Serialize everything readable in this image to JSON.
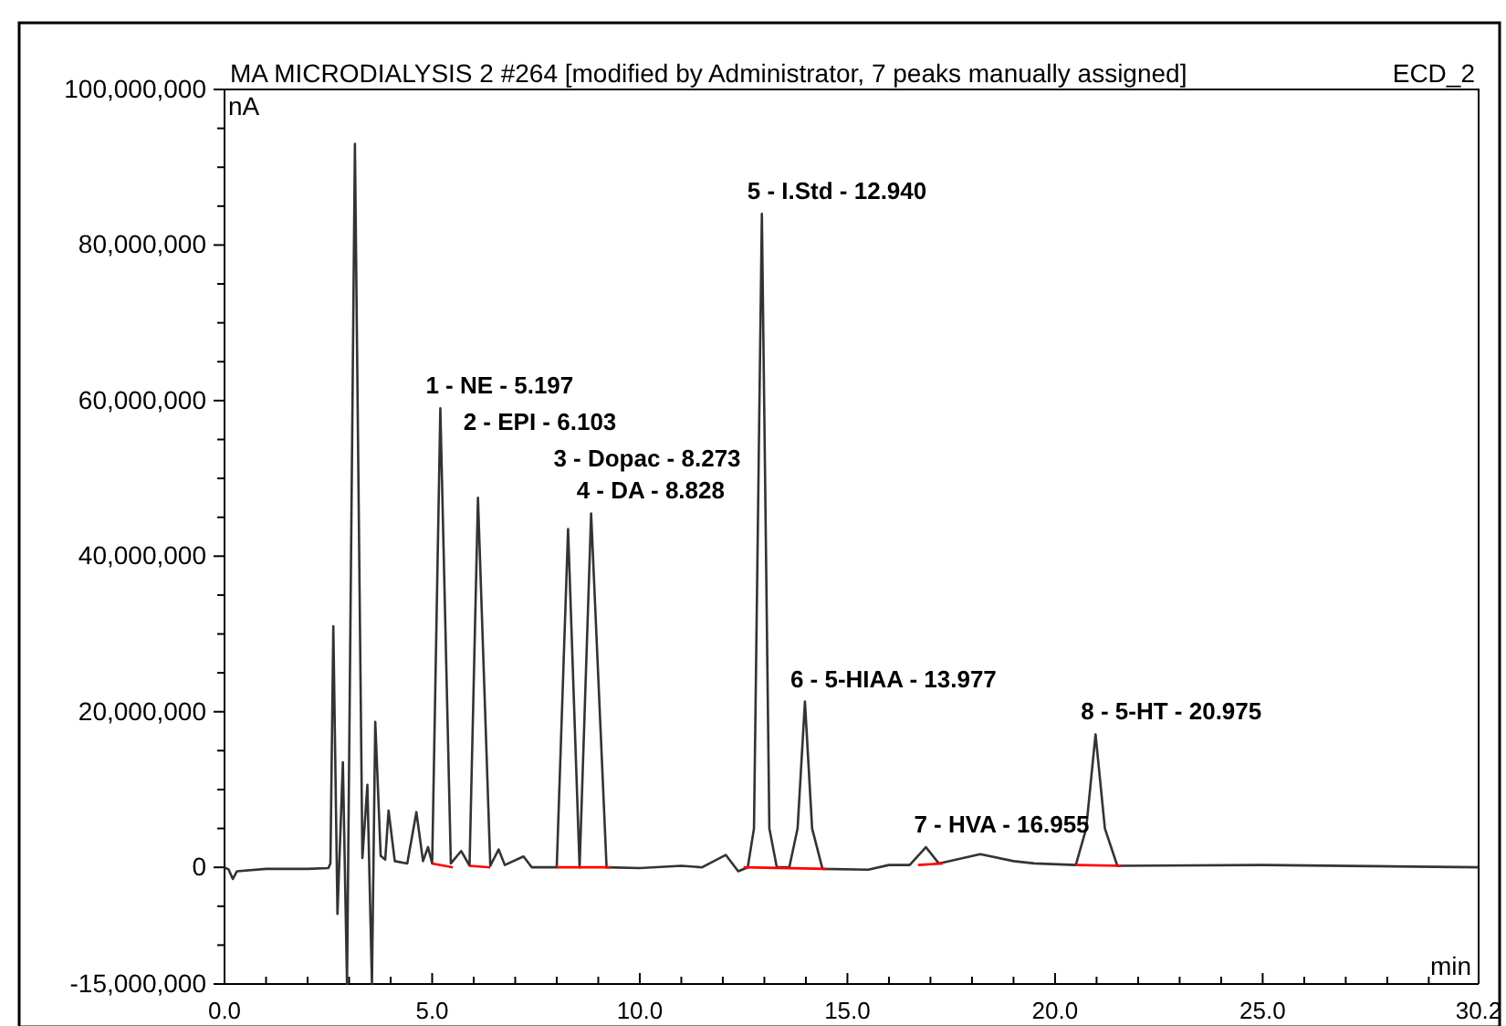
{
  "chart_data": {
    "type": "line",
    "title": "MA MICRODIALYSIS 2 #264 [modified by Administrator, 7 peaks manually assigned]",
    "subtitle": "ECD_2",
    "xlabel": "min",
    "ylabel": "nA",
    "xlim": [
      0,
      30.2
    ],
    "ylim": [
      -15000000,
      100000000
    ],
    "xticks": [
      {
        "value": 0,
        "label": "0.0"
      },
      {
        "value": 1,
        "label": null
      },
      {
        "value": 2,
        "label": null
      },
      {
        "value": 3,
        "label": null
      },
      {
        "value": 4,
        "label": null
      },
      {
        "value": 5,
        "label": "5.0"
      },
      {
        "value": 6,
        "label": null
      },
      {
        "value": 7,
        "label": null
      },
      {
        "value": 8,
        "label": null
      },
      {
        "value": 9,
        "label": null
      },
      {
        "value": 10,
        "label": "10.0"
      },
      {
        "value": 11,
        "label": null
      },
      {
        "value": 12,
        "label": null
      },
      {
        "value": 13,
        "label": null
      },
      {
        "value": 14,
        "label": null
      },
      {
        "value": 15,
        "label": "15.0"
      },
      {
        "value": 16,
        "label": null
      },
      {
        "value": 17,
        "label": null
      },
      {
        "value": 18,
        "label": null
      },
      {
        "value": 19,
        "label": null
      },
      {
        "value": 20,
        "label": "20.0"
      },
      {
        "value": 21,
        "label": null
      },
      {
        "value": 22,
        "label": null
      },
      {
        "value": 23,
        "label": null
      },
      {
        "value": 24,
        "label": null
      },
      {
        "value": 25,
        "label": "25.0"
      },
      {
        "value": 26,
        "label": null
      },
      {
        "value": 27,
        "label": null
      },
      {
        "value": 28,
        "label": null
      },
      {
        "value": 29,
        "label": null
      },
      {
        "value": 30.2,
        "label": "30.2"
      }
    ],
    "yticks": [
      {
        "value": -15000000,
        "label": "-15,000,000"
      },
      {
        "value": -10000000,
        "label": null
      },
      {
        "value": -5000000,
        "label": null
      },
      {
        "value": 0,
        "label": "0"
      },
      {
        "value": 5000000,
        "label": null
      },
      {
        "value": 10000000,
        "label": null
      },
      {
        "value": 15000000,
        "label": null
      },
      {
        "value": 20000000,
        "label": "20,000,000"
      },
      {
        "value": 25000000,
        "label": null
      },
      {
        "value": 30000000,
        "label": null
      },
      {
        "value": 35000000,
        "label": null
      },
      {
        "value": 40000000,
        "label": "40,000,000"
      },
      {
        "value": 45000000,
        "label": null
      },
      {
        "value": 50000000,
        "label": null
      },
      {
        "value": 55000000,
        "label": null
      },
      {
        "value": 60000000,
        "label": "60,000,000"
      },
      {
        "value": 65000000,
        "label": null
      },
      {
        "value": 70000000,
        "label": null
      },
      {
        "value": 75000000,
        "label": null
      },
      {
        "value": 80000000,
        "label": "80,000,000"
      },
      {
        "value": 85000000,
        "label": null
      },
      {
        "value": 90000000,
        "label": null
      },
      {
        "value": 95000000,
        "label": null
      },
      {
        "value": 100000000,
        "label": "100,000,000"
      }
    ],
    "grid": false,
    "series": [
      {
        "color": "#333333",
        "x": [
          0,
          0.1,
          0.2,
          0.3,
          1,
          2,
          2.5,
          2.55,
          2.62,
          2.72,
          2.85,
          2.95,
          3.14,
          3.32,
          3.44,
          3.55,
          3.63,
          3.76,
          3.87,
          3.95,
          4.1,
          4.4,
          4.62,
          4.78,
          4.9,
          5,
          5.197,
          5.45,
          5.7,
          5.9,
          6.103,
          6.4,
          6.6,
          6.75,
          7.2,
          7.4,
          8,
          8.273,
          8.55,
          8.828,
          9.2,
          10,
          11,
          11.5,
          12.07,
          12.37,
          12.6,
          12.75,
          12.94,
          13.12,
          13.3,
          13.6,
          13.8,
          13.977,
          14.15,
          14.4,
          15.5,
          16,
          16.5,
          16.89,
          17.2,
          18.2,
          19,
          19.5,
          20.5,
          20.75,
          20.975,
          21.2,
          21.5,
          25,
          30.2
        ],
        "values": [
          0,
          -300000,
          -1500000,
          -500000,
          -200000,
          -200000,
          -100000,
          500000,
          31000000,
          -6000000,
          13500000,
          -15000000,
          93000000,
          1200000,
          10600000,
          -15000000,
          18700000,
          1500000,
          1000000,
          7300000,
          800000,
          500000,
          7100000,
          800000,
          2600000,
          500000,
          59000000,
          500000,
          2100000,
          200000,
          47500000,
          200000,
          2300000,
          300000,
          1400000,
          0,
          0,
          43500000,
          0,
          45500000,
          0,
          -100000,
          200000,
          0,
          1600000,
          -500000,
          0,
          5000000,
          84000000,
          5000000,
          0,
          0,
          5000000,
          21300000,
          5000000,
          -200000,
          -300000,
          300000,
          300000,
          2600000,
          500000,
          1700000,
          800000,
          500000,
          300000,
          5000000,
          17100000,
          5000000,
          200000,
          300000,
          0
        ]
      },
      {
        "color": "#ff0000",
        "x": [
          5,
          5.5,
          5.7,
          5.9,
          6.4,
          7,
          8,
          9.3,
          11,
          12.5,
          14.5,
          15,
          16.7,
          17.3,
          18,
          20.5,
          21.6
        ],
        "values": [
          500000,
          0,
          null,
          200000,
          0,
          null,
          0,
          0,
          null,
          0,
          -200000,
          null,
          300000,
          500000,
          null,
          300000,
          200000
        ]
      }
    ],
    "annotations": [
      {
        "text": "1 - NE - 5.197",
        "x": 5.197,
        "y": 59000000
      },
      {
        "text": "2 - EPI - 6.103",
        "x": 6.103,
        "y": 47500000
      },
      {
        "text": "3 - Dopac - 8.273",
        "x": 8.273,
        "y": 43500000
      },
      {
        "text": "4 - DA - 8.828",
        "x": 8.828,
        "y": 45500000
      },
      {
        "text": "5 - I.Std - 12.940",
        "x": 12.94,
        "y": 84000000
      },
      {
        "text": "6 - 5-HIAA - 13.977",
        "x": 13.977,
        "y": 21300000
      },
      {
        "text": "7 - HVA - 16.955",
        "x": 16.955,
        "y": 2600000
      },
      {
        "text": "8 - 5-HT - 20.975",
        "x": 20.975,
        "y": 17100000
      }
    ]
  }
}
